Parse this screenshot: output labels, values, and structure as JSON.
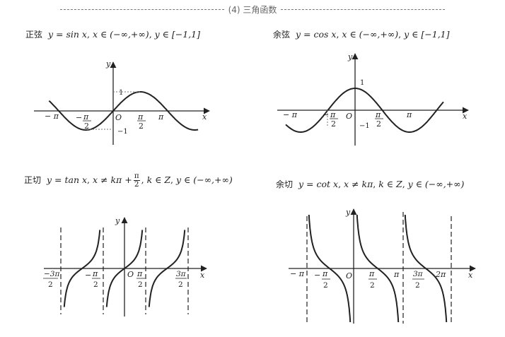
{
  "section": {
    "title": "(4) 三角函数"
  },
  "sine": {
    "name": "正弦",
    "eq": "y = sin x",
    "domain": "x ∈ (−∞,+∞)",
    "range": "y ∈ [−1,1]",
    "labels": {
      "x": "x",
      "y": "y",
      "o": "O",
      "neg_pi": "− π",
      "neg_half": "−",
      "half_pi_num": "π",
      "half_pi_den": "2",
      "pi": "π",
      "one": "1",
      "neg_one": "−1"
    }
  },
  "cosine": {
    "name": "余弦",
    "eq": "y = cos x",
    "domain": "x ∈ (−∞,+∞)",
    "range": "y ∈ [−1,1]",
    "labels": {
      "x": "x",
      "y": "y",
      "o": "O",
      "neg_pi": "− π",
      "neg_half": "−",
      "half_pi_num": "π",
      "half_pi_den": "2",
      "pi": "π",
      "one": "1",
      "neg_one": "−1"
    }
  },
  "tangent": {
    "name": "正切",
    "eq": "y = tan x",
    "cond_prefix": "x ≠ kπ +",
    "cond_num": "π",
    "cond_den": "2",
    "k": "k ∈ Z",
    "range": "y ∈ (−∞,+∞)",
    "labels": {
      "x": "x",
      "y": "y",
      "o": "O",
      "neg_3pi_num": "−3π",
      "neg_3pi_den": "2",
      "neg_half": "−",
      "pi_num": "π",
      "pi_den": "2",
      "three_pi_num": "3π",
      "three_pi_den": "2"
    }
  },
  "cotangent": {
    "name": "余切",
    "eq": "y = cot x",
    "cond": "x ≠ kπ",
    "k": "k ∈ Z",
    "range": "y ∈ (−∞,+∞)",
    "labels": {
      "x": "x",
      "y": "y",
      "o": "O",
      "neg_pi": "− π",
      "neg_half": "−",
      "pi_num": "π",
      "pi_den": "2",
      "pi": "π",
      "three_pi_num": "3π",
      "three_pi_den": "2",
      "two_pi": "2π"
    }
  }
}
